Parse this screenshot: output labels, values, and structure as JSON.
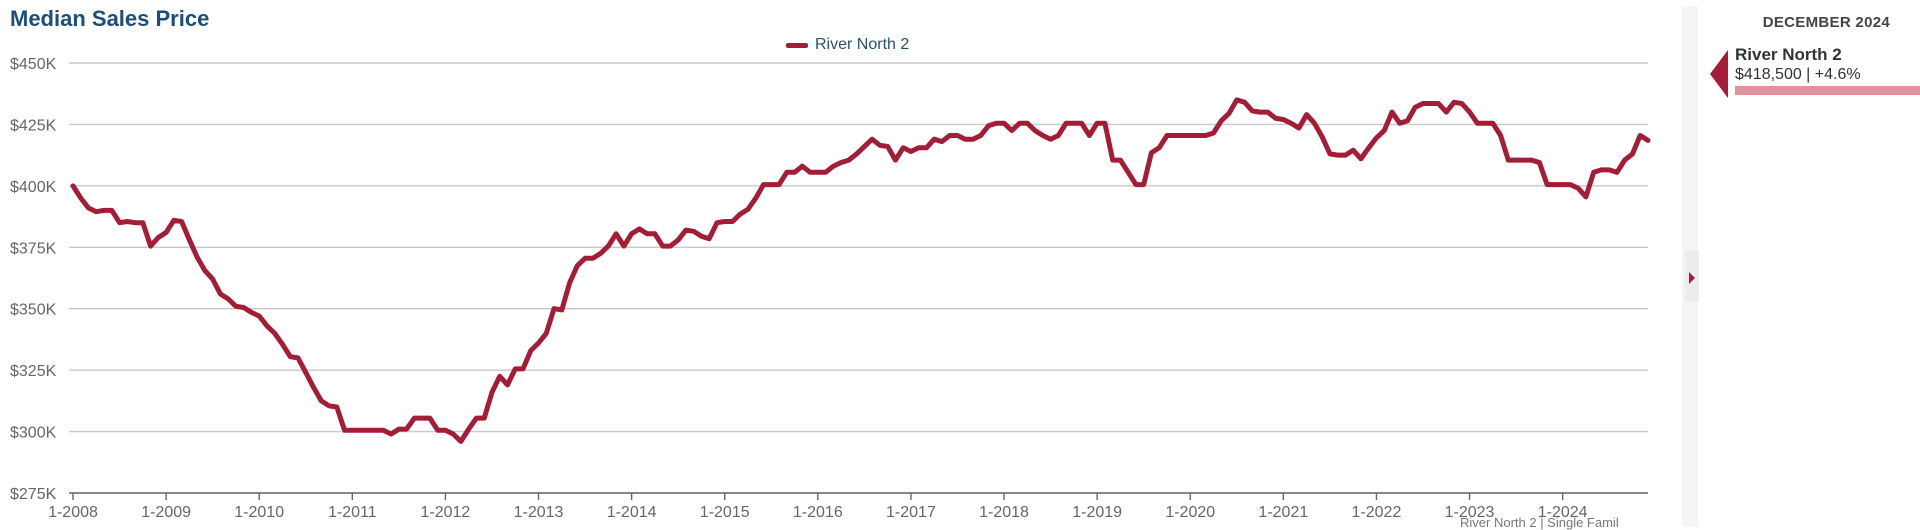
{
  "header": {
    "title": "Median Sales Price"
  },
  "side_panel": {
    "month": "DECEMBER 2024",
    "series_name": "River North 2",
    "value_text": "$418,500 | +4.6%"
  },
  "footer": {
    "partial_text": "River North 2 | Single Famil"
  },
  "colors": {
    "series": "#a51c36",
    "title": "#1d4e79",
    "grid": "#c8c8c8",
    "axis": "#666666"
  },
  "icons": {
    "side_pointer": "caret-left-icon",
    "collapse_handle": "caret-right-icon"
  },
  "chart_data": {
    "type": "line",
    "title": "Median Sales Price",
    "xlabel": "",
    "ylabel": "",
    "ylim": [
      275000,
      450000
    ],
    "y_ticks": [
      275000,
      300000,
      325000,
      350000,
      375000,
      400000,
      425000,
      450000
    ],
    "y_tick_labels": [
      "$275K",
      "$300K",
      "$325K",
      "$350K",
      "$375K",
      "$400K",
      "$425K",
      "$450K"
    ],
    "x_ticks": [
      "1-2008",
      "1-2009",
      "1-2010",
      "1-2011",
      "1-2012",
      "1-2013",
      "1-2014",
      "1-2015",
      "1-2016",
      "1-2017",
      "1-2018",
      "1-2019",
      "1-2020",
      "1-2021",
      "1-2022",
      "1-2023",
      "1-2024"
    ],
    "x_range": [
      "1-2008",
      "12-2024"
    ],
    "grid": true,
    "legend_placement": "top-center",
    "series": [
      {
        "name": "River North 2",
        "points": [
          [
            "1-2008",
            400000
          ],
          [
            "2-2008",
            395000
          ],
          [
            "3-2008",
            391000
          ],
          [
            "4-2008",
            389500
          ],
          [
            "5-2008",
            390000
          ],
          [
            "6-2008",
            390000
          ],
          [
            "7-2008",
            385000
          ],
          [
            "8-2008",
            385500
          ],
          [
            "9-2008",
            385000
          ],
          [
            "10-2008",
            385000
          ],
          [
            "11-2008",
            375500
          ],
          [
            "12-2008",
            379000
          ],
          [
            "1-2009",
            381000
          ],
          [
            "2-2009",
            386000
          ],
          [
            "3-2009",
            385500
          ],
          [
            "4-2009",
            378000
          ],
          [
            "5-2009",
            371000
          ],
          [
            "6-2009",
            365500
          ],
          [
            "7-2009",
            362000
          ],
          [
            "8-2009",
            356000
          ],
          [
            "9-2009",
            354000
          ],
          [
            "10-2009",
            351000
          ],
          [
            "11-2009",
            350500
          ],
          [
            "12-2009",
            348500
          ],
          [
            "1-2010",
            347000
          ],
          [
            "2-2010",
            343000
          ],
          [
            "3-2010",
            340000
          ],
          [
            "4-2010",
            335500
          ],
          [
            "5-2010",
            330500
          ],
          [
            "6-2010",
            330000
          ],
          [
            "7-2010",
            324000
          ],
          [
            "8-2010",
            318000
          ],
          [
            "9-2010",
            312500
          ],
          [
            "10-2010",
            310500
          ],
          [
            "11-2010",
            310000
          ],
          [
            "12-2010",
            300500
          ],
          [
            "1-2011",
            300500
          ],
          [
            "2-2011",
            300500
          ],
          [
            "3-2011",
            300500
          ],
          [
            "4-2011",
            300500
          ],
          [
            "5-2011",
            300500
          ],
          [
            "6-2011",
            299000
          ],
          [
            "7-2011",
            301000
          ],
          [
            "8-2011",
            301000
          ],
          [
            "9-2011",
            305500
          ],
          [
            "10-2011",
            305500
          ],
          [
            "11-2011",
            305500
          ],
          [
            "12-2011",
            300500
          ],
          [
            "1-2012",
            300500
          ],
          [
            "2-2012",
            299000
          ],
          [
            "3-2012",
            296000
          ],
          [
            "4-2012",
            301000
          ],
          [
            "5-2012",
            305500
          ],
          [
            "6-2012",
            305500
          ],
          [
            "7-2012",
            316000
          ],
          [
            "8-2012",
            322500
          ],
          [
            "9-2012",
            319000
          ],
          [
            "10-2012",
            325500
          ],
          [
            "11-2012",
            325500
          ],
          [
            "12-2012",
            333000
          ],
          [
            "1-2013",
            336000
          ],
          [
            "2-2013",
            340000
          ],
          [
            "3-2013",
            350000
          ],
          [
            "4-2013",
            349500
          ],
          [
            "5-2013",
            360500
          ],
          [
            "6-2013",
            367500
          ],
          [
            "7-2013",
            370500
          ],
          [
            "8-2013",
            370500
          ],
          [
            "9-2013",
            372500
          ],
          [
            "10-2013",
            375500
          ],
          [
            "11-2013",
            380500
          ],
          [
            "12-2013",
            375500
          ],
          [
            "1-2014",
            380500
          ],
          [
            "2-2014",
            382500
          ],
          [
            "3-2014",
            380500
          ],
          [
            "4-2014",
            380500
          ],
          [
            "5-2014",
            375500
          ],
          [
            "6-2014",
            375500
          ],
          [
            "7-2014",
            378000
          ],
          [
            "8-2014",
            382000
          ],
          [
            "9-2014",
            381500
          ],
          [
            "10-2014",
            379500
          ],
          [
            "11-2014",
            378500
          ],
          [
            "12-2014",
            385000
          ],
          [
            "1-2015",
            385500
          ],
          [
            "2-2015",
            385500
          ],
          [
            "3-2015",
            388500
          ],
          [
            "4-2015",
            390500
          ],
          [
            "5-2015",
            395000
          ],
          [
            "6-2015",
            400500
          ],
          [
            "7-2015",
            400500
          ],
          [
            "8-2015",
            400500
          ],
          [
            "9-2015",
            405500
          ],
          [
            "10-2015",
            405500
          ],
          [
            "11-2015",
            408000
          ],
          [
            "12-2015",
            405500
          ],
          [
            "1-2016",
            405500
          ],
          [
            "2-2016",
            405500
          ],
          [
            "3-2016",
            408000
          ],
          [
            "4-2016",
            409500
          ],
          [
            "5-2016",
            410500
          ],
          [
            "6-2016",
            413000
          ],
          [
            "7-2016",
            416000
          ],
          [
            "8-2016",
            419000
          ],
          [
            "9-2016",
            416500
          ],
          [
            "10-2016",
            416000
          ],
          [
            "11-2016",
            410500
          ],
          [
            "12-2016",
            415500
          ],
          [
            "1-2017",
            414000
          ],
          [
            "2-2017",
            415500
          ],
          [
            "3-2017",
            415500
          ],
          [
            "4-2017",
            419000
          ],
          [
            "5-2017",
            418000
          ],
          [
            "6-2017",
            420500
          ],
          [
            "7-2017",
            420500
          ],
          [
            "8-2017",
            419000
          ],
          [
            "9-2017",
            419000
          ],
          [
            "10-2017",
            420500
          ],
          [
            "11-2017",
            424500
          ],
          [
            "12-2017",
            425500
          ],
          [
            "1-2018",
            425500
          ],
          [
            "2-2018",
            422500
          ],
          [
            "3-2018",
            425500
          ],
          [
            "4-2018",
            425500
          ],
          [
            "5-2018",
            422500
          ],
          [
            "6-2018",
            420500
          ],
          [
            "7-2018",
            419000
          ],
          [
            "8-2018",
            420500
          ],
          [
            "9-2018",
            425500
          ],
          [
            "10-2018",
            425500
          ],
          [
            "11-2018",
            425500
          ],
          [
            "12-2018",
            420500
          ],
          [
            "1-2019",
            425500
          ],
          [
            "2-2019",
            425500
          ],
          [
            "3-2019",
            410500
          ],
          [
            "4-2019",
            410500
          ],
          [
            "5-2019",
            405500
          ],
          [
            "6-2019",
            400500
          ],
          [
            "7-2019",
            400500
          ],
          [
            "8-2019",
            413500
          ],
          [
            "9-2019",
            415500
          ],
          [
            "10-2019",
            420500
          ],
          [
            "11-2019",
            420500
          ],
          [
            "12-2019",
            420500
          ],
          [
            "1-2020",
            420500
          ],
          [
            "2-2020",
            420500
          ],
          [
            "3-2020",
            420500
          ],
          [
            "4-2020",
            421500
          ],
          [
            "5-2020",
            426500
          ],
          [
            "6-2020",
            429500
          ],
          [
            "7-2020",
            435000
          ],
          [
            "8-2020",
            434000
          ],
          [
            "9-2020",
            430500
          ],
          [
            "10-2020",
            430000
          ],
          [
            "11-2020",
            430000
          ],
          [
            "12-2020",
            427500
          ],
          [
            "1-2021",
            427000
          ],
          [
            "2-2021",
            425500
          ],
          [
            "3-2021",
            423500
          ],
          [
            "4-2021",
            429000
          ],
          [
            "5-2021",
            425500
          ],
          [
            "6-2021",
            420000
          ],
          [
            "7-2021",
            413000
          ],
          [
            "8-2021",
            412500
          ],
          [
            "9-2021",
            412500
          ],
          [
            "10-2021",
            414500
          ],
          [
            "11-2021",
            411000
          ],
          [
            "12-2021",
            415500
          ],
          [
            "1-2022",
            419500
          ],
          [
            "2-2022",
            422500
          ],
          [
            "3-2022",
            430000
          ],
          [
            "4-2022",
            425500
          ],
          [
            "5-2022",
            426500
          ],
          [
            "6-2022",
            432000
          ],
          [
            "7-2022",
            433500
          ],
          [
            "8-2022",
            433500
          ],
          [
            "9-2022",
            433500
          ],
          [
            "10-2022",
            430000
          ],
          [
            "11-2022",
            434000
          ],
          [
            "12-2022",
            433500
          ],
          [
            "1-2023",
            430000
          ],
          [
            "2-2023",
            425500
          ],
          [
            "3-2023",
            425500
          ],
          [
            "4-2023",
            425500
          ],
          [
            "5-2023",
            420500
          ],
          [
            "6-2023",
            410500
          ],
          [
            "7-2023",
            410500
          ],
          [
            "8-2023",
            410500
          ],
          [
            "9-2023",
            410500
          ],
          [
            "10-2023",
            409500
          ],
          [
            "11-2023",
            400500
          ],
          [
            "12-2023",
            400500
          ],
          [
            "1-2024",
            400500
          ],
          [
            "2-2024",
            400500
          ],
          [
            "3-2024",
            399000
          ],
          [
            "4-2024",
            395500
          ],
          [
            "5-2024",
            405500
          ],
          [
            "6-2024",
            406500
          ],
          [
            "7-2024",
            406500
          ],
          [
            "8-2024",
            405500
          ],
          [
            "9-2024",
            410500
          ],
          [
            "10-2024",
            413000
          ],
          [
            "11-2024",
            420500
          ],
          [
            "12-2024",
            418500
          ]
        ]
      }
    ]
  }
}
